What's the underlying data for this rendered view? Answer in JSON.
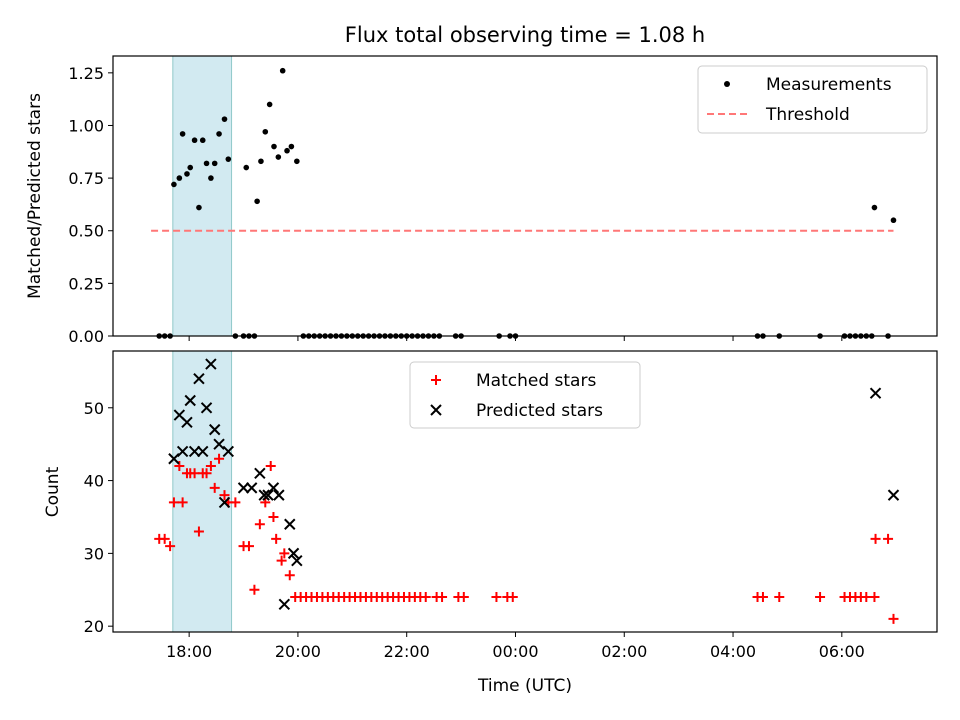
{
  "title": "Flux total observing time = 1.08 h",
  "chart_data": [
    {
      "type": "scatter",
      "ylabel": "Matched/Predicted stars",
      "ylim": [
        0,
        1.33
      ],
      "yticks": [
        0,
        0.25,
        0.5,
        0.75,
        1.0,
        1.25
      ],
      "ytick_labels": [
        "0.00",
        "0.25",
        "0.50",
        "0.75",
        "1.00",
        "1.25"
      ],
      "legend_position": "top-right",
      "series": [
        {
          "name": "Measurements",
          "marker": "dot",
          "color": "#000000",
          "points": [
            [
              17.45,
              0
            ],
            [
              17.55,
              0
            ],
            [
              17.65,
              0
            ],
            [
              17.72,
              0.72
            ],
            [
              17.82,
              0.75
            ],
            [
              17.88,
              0.96
            ],
            [
              17.96,
              0.77
            ],
            [
              18.02,
              0.8
            ],
            [
              18.1,
              0.93
            ],
            [
              18.18,
              0.61
            ],
            [
              18.25,
              0.93
            ],
            [
              18.32,
              0.82
            ],
            [
              18.4,
              0.75
            ],
            [
              18.47,
              0.82
            ],
            [
              18.55,
              0.96
            ],
            [
              18.65,
              1.03
            ],
            [
              18.72,
              0.84
            ],
            [
              18.85,
              0
            ],
            [
              19.0,
              0
            ],
            [
              19.1,
              0
            ],
            [
              19.2,
              0
            ],
            [
              19.05,
              0.8
            ],
            [
              19.25,
              0.64
            ],
            [
              19.32,
              0.83
            ],
            [
              19.4,
              0.97
            ],
            [
              19.48,
              1.1
            ],
            [
              19.56,
              0.9
            ],
            [
              19.64,
              0.85
            ],
            [
              19.72,
              1.26
            ],
            [
              19.8,
              0.88
            ],
            [
              19.88,
              0.9
            ],
            [
              19.98,
              0.83
            ],
            [
              20.1,
              0
            ],
            [
              20.2,
              0
            ],
            [
              20.3,
              0
            ],
            [
              20.4,
              0
            ],
            [
              20.5,
              0
            ],
            [
              20.6,
              0
            ],
            [
              20.7,
              0
            ],
            [
              20.8,
              0
            ],
            [
              20.9,
              0
            ],
            [
              21.0,
              0
            ],
            [
              21.1,
              0
            ],
            [
              21.2,
              0
            ],
            [
              21.3,
              0
            ],
            [
              21.4,
              0
            ],
            [
              21.5,
              0
            ],
            [
              21.6,
              0
            ],
            [
              21.7,
              0
            ],
            [
              21.8,
              0
            ],
            [
              21.9,
              0
            ],
            [
              22.0,
              0
            ],
            [
              22.1,
              0
            ],
            [
              22.2,
              0
            ],
            [
              22.3,
              0
            ],
            [
              22.4,
              0
            ],
            [
              22.5,
              0
            ],
            [
              22.6,
              0
            ],
            [
              22.9,
              0
            ],
            [
              23.0,
              0
            ],
            [
              23.7,
              0
            ],
            [
              23.9,
              0
            ],
            [
              24.0,
              0
            ],
            [
              28.45,
              0
            ],
            [
              28.55,
              0
            ],
            [
              28.85,
              0
            ],
            [
              29.6,
              0
            ],
            [
              30.05,
              0
            ],
            [
              30.15,
              0
            ],
            [
              30.25,
              0
            ],
            [
              30.35,
              0
            ],
            [
              30.45,
              0
            ],
            [
              30.55,
              0
            ],
            [
              30.6,
              0.61
            ],
            [
              30.85,
              0
            ],
            [
              30.95,
              0.55
            ]
          ]
        },
        {
          "name": "Threshold",
          "marker": "dashed-line",
          "color": "#ff7777",
          "x": [
            17.3,
            30.95
          ],
          "y": [
            0.5,
            0.5
          ]
        }
      ]
    },
    {
      "type": "scatter",
      "xlabel": "Time (UTC)",
      "ylabel": "Count",
      "ylim": [
        19.2,
        57.8
      ],
      "yticks": [
        20,
        30,
        40,
        50
      ],
      "ytick_labels": [
        "20",
        "30",
        "40",
        "50"
      ],
      "xlim": [
        16.6,
        31.75
      ],
      "xticks": [
        18,
        20,
        22,
        24,
        26,
        28,
        30
      ],
      "xtick_labels": [
        "18:00",
        "20:00",
        "22:00",
        "00:00",
        "02:00",
        "04:00",
        "06:00"
      ],
      "legend_position": "top-center",
      "series": [
        {
          "name": "Matched stars",
          "marker": "plus",
          "color": "#ff0000",
          "points": [
            [
              17.45,
              32
            ],
            [
              17.55,
              32
            ],
            [
              17.65,
              31
            ],
            [
              17.72,
              37
            ],
            [
              17.82,
              42
            ],
            [
              17.88,
              37
            ],
            [
              17.96,
              41
            ],
            [
              18.02,
              41
            ],
            [
              18.1,
              41
            ],
            [
              18.18,
              33
            ],
            [
              18.25,
              41
            ],
            [
              18.32,
              41
            ],
            [
              18.4,
              42
            ],
            [
              18.47,
              39
            ],
            [
              18.55,
              43
            ],
            [
              18.65,
              38
            ],
            [
              18.72,
              37
            ],
            [
              18.85,
              37
            ],
            [
              19.0,
              31
            ],
            [
              19.1,
              31
            ],
            [
              19.2,
              25
            ],
            [
              19.3,
              34
            ],
            [
              19.4,
              37
            ],
            [
              19.5,
              42
            ],
            [
              19.55,
              35
            ],
            [
              19.6,
              32
            ],
            [
              19.7,
              29
            ],
            [
              19.75,
              30
            ],
            [
              19.85,
              27
            ],
            [
              19.95,
              24
            ],
            [
              20.05,
              24
            ],
            [
              20.15,
              24
            ],
            [
              20.25,
              24
            ],
            [
              20.35,
              24
            ],
            [
              20.45,
              24
            ],
            [
              20.55,
              24
            ],
            [
              20.65,
              24
            ],
            [
              20.75,
              24
            ],
            [
              20.85,
              24
            ],
            [
              20.95,
              24
            ],
            [
              21.05,
              24
            ],
            [
              21.15,
              24
            ],
            [
              21.25,
              24
            ],
            [
              21.35,
              24
            ],
            [
              21.45,
              24
            ],
            [
              21.55,
              24
            ],
            [
              21.65,
              24
            ],
            [
              21.75,
              24
            ],
            [
              21.85,
              24
            ],
            [
              21.95,
              24
            ],
            [
              22.05,
              24
            ],
            [
              22.15,
              24
            ],
            [
              22.25,
              24
            ],
            [
              22.35,
              24
            ],
            [
              22.55,
              24
            ],
            [
              22.65,
              24
            ],
            [
              22.95,
              24
            ],
            [
              23.05,
              24
            ],
            [
              23.65,
              24
            ],
            [
              23.85,
              24
            ],
            [
              23.95,
              24
            ],
            [
              28.45,
              24
            ],
            [
              28.55,
              24
            ],
            [
              28.85,
              24
            ],
            [
              29.6,
              24
            ],
            [
              30.05,
              24
            ],
            [
              30.15,
              24
            ],
            [
              30.25,
              24
            ],
            [
              30.35,
              24
            ],
            [
              30.45,
              24
            ],
            [
              30.6,
              24
            ],
            [
              30.62,
              32
            ],
            [
              30.85,
              32
            ],
            [
              30.95,
              21
            ]
          ]
        },
        {
          "name": "Predicted stars",
          "marker": "x",
          "color": "#000000",
          "points": [
            [
              17.72,
              43
            ],
            [
              17.82,
              49
            ],
            [
              17.88,
              44
            ],
            [
              17.96,
              48
            ],
            [
              18.02,
              51
            ],
            [
              18.1,
              44
            ],
            [
              18.18,
              54
            ],
            [
              18.25,
              44
            ],
            [
              18.32,
              50
            ],
            [
              18.4,
              56
            ],
            [
              18.47,
              47
            ],
            [
              18.55,
              45
            ],
            [
              18.65,
              37
            ],
            [
              18.72,
              44
            ],
            [
              19.0,
              39
            ],
            [
              19.15,
              39
            ],
            [
              19.3,
              41
            ],
            [
              19.38,
              38
            ],
            [
              19.45,
              38
            ],
            [
              19.55,
              39
            ],
            [
              19.65,
              38
            ],
            [
              19.75,
              23
            ],
            [
              19.85,
              34
            ],
            [
              19.92,
              30
            ],
            [
              19.98,
              29
            ],
            [
              30.62,
              52
            ],
            [
              30.95,
              38
            ]
          ]
        }
      ]
    }
  ],
  "highlight_span": {
    "x": [
      17.7,
      18.78
    ],
    "color": "#add8e6"
  }
}
